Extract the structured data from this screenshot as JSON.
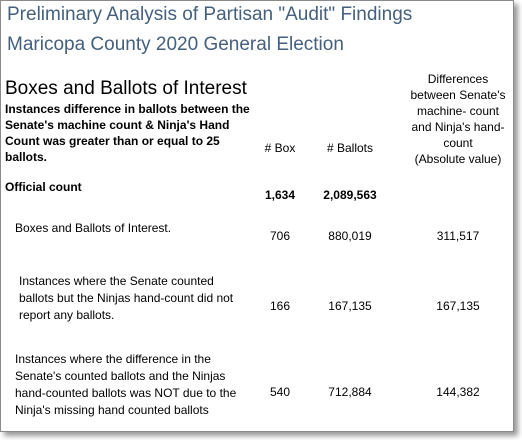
{
  "header": {
    "title": [
      "Preliminary Analysis of Partisan \"Audit\" Findings",
      "Maricopa County  2020 General Election"
    ]
  },
  "section": {
    "heading": "Boxes and Ballots of Interest",
    "description": [
      "Instances difference in ballots between the",
      "Senate's machine count & Ninja's Hand",
      "Count was greater than or equal to 25",
      "ballots."
    ]
  },
  "table": {
    "columns": [
      "# Box",
      "# Ballots",
      [
        "Differences",
        "between Senate's",
        "machine- count",
        "and Ninja's hand-",
        "count",
        "(Absolute value)"
      ]
    ],
    "rows": [
      [
        [
          "Official count"
        ],
        "1,634",
        "2,089,563",
        null
      ],
      [
        [
          "Boxes and Ballots of Interest."
        ],
        "706",
        "880,019",
        "311,517"
      ],
      [
        [
          "Instances where the Senate counted",
          "ballots but the Ninjas hand-count did not",
          "report any ballots."
        ],
        "166",
        "167,135",
        "167,135"
      ],
      [
        [
          "Instances where the difference in the",
          "Senate's counted ballots and the Ninjas",
          "hand-counted ballots was NOT due to the",
          "Ninja's missing hand counted ballots"
        ],
        "540",
        "712,884",
        "144,382"
      ]
    ]
  }
}
